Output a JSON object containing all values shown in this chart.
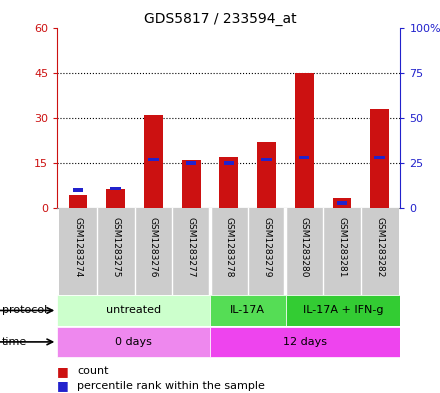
{
  "title": "GDS5817 / 233594_at",
  "samples": [
    "GSM1283274",
    "GSM1283275",
    "GSM1283276",
    "GSM1283277",
    "GSM1283278",
    "GSM1283279",
    "GSM1283280",
    "GSM1283281",
    "GSM1283282"
  ],
  "counts": [
    4.5,
    6.5,
    31,
    16,
    17,
    22,
    45,
    3.5,
    33
  ],
  "percentile_ranks": [
    10,
    11,
    27,
    25,
    25,
    27,
    28,
    3,
    28
  ],
  "ylim_left": [
    0,
    60
  ],
  "ylim_right": [
    0,
    100
  ],
  "yticks_left": [
    0,
    15,
    30,
    45,
    60
  ],
  "yticks_right": [
    0,
    25,
    50,
    75,
    100
  ],
  "ytick_labels_left": [
    "0",
    "15",
    "30",
    "45",
    "60"
  ],
  "ytick_labels_right": [
    "0",
    "25",
    "50",
    "75",
    "100%"
  ],
  "bar_color": "#cc1111",
  "blue_color": "#2222cc",
  "grid_color": "black",
  "protocol_groups": [
    {
      "label": "untreated",
      "start": 0,
      "end": 4,
      "color": "#ccffcc"
    },
    {
      "label": "IL-17A",
      "start": 4,
      "end": 6,
      "color": "#55dd55"
    },
    {
      "label": "IL-17A + IFN-g",
      "start": 6,
      "end": 9,
      "color": "#33cc33"
    }
  ],
  "time_groups": [
    {
      "label": "0 days",
      "start": 0,
      "end": 4,
      "color": "#ee88ee"
    },
    {
      "label": "12 days",
      "start": 4,
      "end": 9,
      "color": "#ee44ee"
    }
  ],
  "protocol_label": "protocol",
  "time_label": "time",
  "legend_count_label": "count",
  "legend_pct_label": "percentile rank within the sample",
  "bg_color": "#ffffff",
  "plot_bg_color": "#ffffff",
  "sample_label_bg": "#cccccc",
  "sample_label_bg_alt": "#dddddd",
  "bar_width": 0.5,
  "group_borders": [
    3.5,
    5.5
  ],
  "n_samples": 9
}
